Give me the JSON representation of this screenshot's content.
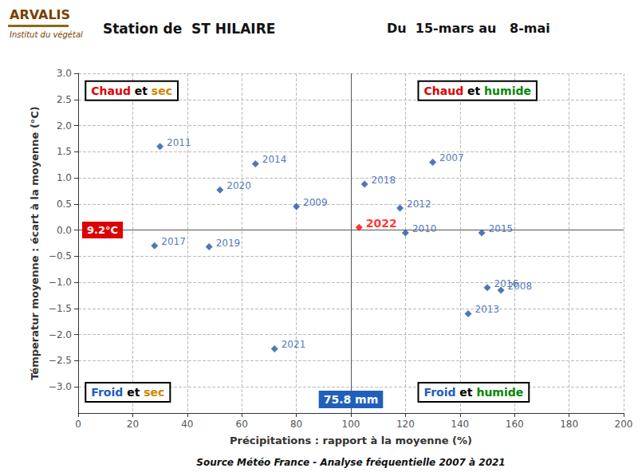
{
  "chart_data": {
    "type": "scatter",
    "title": "Station de  ST HILAIRE",
    "subtitle": "Du  15-mars au   8-mai",
    "xlabel": "Précipitations : rapport à la moyenne (%)",
    "ylabel": "Témperatur moyenne : écart à la moyenne (°C)",
    "source": "Source Météo France - Analyse fréquentielle 2007 à 2021",
    "x": [
      130,
      155,
      80,
      120,
      30,
      118,
      143,
      65,
      148,
      150,
      28,
      105,
      48,
      52,
      72,
      103
    ],
    "values": [
      1.3,
      -1.15,
      0.45,
      -0.05,
      1.6,
      0.42,
      -1.6,
      1.27,
      -0.05,
      -1.1,
      -0.3,
      0.88,
      -0.32,
      0.77,
      -2.27,
      0.05
    ],
    "point_labels": [
      "2007",
      "2008",
      "2009",
      "2010",
      "2011",
      "2012",
      "2013",
      "2014",
      "2015",
      "2016",
      "2017",
      "2018",
      "2019",
      "2020",
      "2021",
      "2022"
    ],
    "colors": [
      "#2255AA",
      "#2255AA",
      "#2255AA",
      "#2255AA",
      "#2255AA",
      "#2255AA",
      "#2255AA",
      "#2255AA",
      "#2255AA",
      "#2255AA",
      "#2255AA",
      "#2255AA",
      "#2255AA",
      "#2255AA",
      "#2255AA",
      "#FF0000"
    ],
    "highlight": "2022",
    "marker": "diamond",
    "xlim": [
      0,
      200
    ],
    "ylim": [
      -3.5,
      3.0
    ],
    "xticks": [
      0,
      20,
      40,
      60,
      80,
      100,
      120,
      140,
      160,
      180,
      200
    ],
    "yticks": [
      {
        "value": -3,
        "label": "−3.0"
      },
      {
        "value": -2.5,
        "label": "−2.5"
      },
      {
        "value": -2,
        "label": "−2.0"
      },
      {
        "value": -1.5,
        "label": "−1.5"
      },
      {
        "value": -1,
        "label": "−1.0"
      },
      {
        "value": -0.5,
        "label": "−0.5"
      },
      {
        "value": 0,
        "label": "0.0"
      },
      0.5,
      {
        "value": 1,
        "label": "1.0"
      },
      1.5,
      {
        "value": 2,
        "label": "2.0"
      },
      2.5,
      {
        "value": 3,
        "label": "3.0"
      }
    ],
    "grid": true,
    "grid_color": "#BBBBBB",
    "mean_x": 100,
    "mean_y": 0,
    "corner_labels": {
      "top_left": [
        {
          "text": "Chaud",
          "color": "#DD0000"
        },
        {
          "text": " et ",
          "color": "#000000"
        },
        {
          "text": "sec",
          "color": "#CC8800"
        }
      ],
      "top_right": [
        {
          "text": "Chaud",
          "color": "#DD0000"
        },
        {
          "text": " et ",
          "color": "#000000"
        },
        {
          "text": "humide",
          "color": "#008800"
        }
      ],
      "bottom_left": [
        {
          "text": "Froid",
          "color": "#2060BB"
        },
        {
          "text": " et ",
          "color": "#000000"
        },
        {
          "text": "sec",
          "color": "#CC8800"
        }
      ],
      "bottom_right": [
        {
          "text": "Froid",
          "color": "#2060BB"
        },
        {
          "text": " et ",
          "color": "#000000"
        },
        {
          "text": "humide",
          "color": "#008800"
        }
      ]
    },
    "boxes": [
      {
        "text": "9.2°C",
        "color": "#DD0000",
        "axis": "y"
      },
      {
        "text": "75.8 mm",
        "color": "#2060BB",
        "axis": "x"
      }
    ],
    "logo": {
      "text": "ARVALIS",
      "subtitle": "Institut du végétal",
      "color": "#7B3F00",
      "bar_color": "#8B6914"
    }
  }
}
